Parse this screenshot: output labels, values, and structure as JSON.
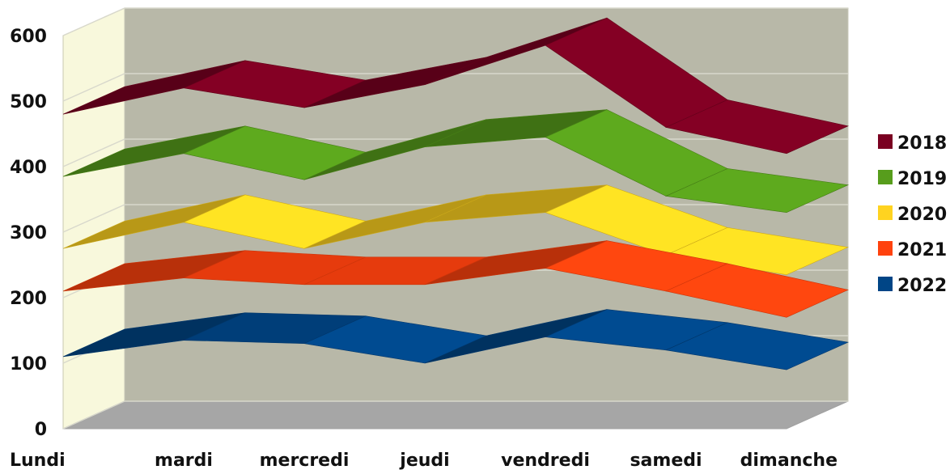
{
  "chart_data": {
    "type": "area",
    "variant": "3d-ribbon",
    "title": "",
    "xlabel": "",
    "ylabel": "",
    "ylim": [
      0,
      600
    ],
    "yticks": [
      0,
      100,
      200,
      300,
      400,
      500,
      600
    ],
    "grid": true,
    "legend_position": "right",
    "categories": [
      "Lundi",
      "mardi",
      "mercredi",
      "jeudi",
      "vendredi",
      "samedi",
      "dimanche"
    ],
    "series": [
      {
        "name": "2018",
        "color": "#7a0021",
        "values": [
          480,
          520,
          490,
          525,
          585,
          460,
          420
        ]
      },
      {
        "name": "2019",
        "color": "#579d1c",
        "values": [
          385,
          420,
          380,
          430,
          445,
          355,
          330
        ]
      },
      {
        "name": "2020",
        "color": "#ffd320",
        "values": [
          275,
          315,
          275,
          315,
          330,
          265,
          235
        ]
      },
      {
        "name": "2021",
        "color": "#ff420e",
        "values": [
          210,
          230,
          220,
          220,
          245,
          210,
          170
        ]
      },
      {
        "name": "2022",
        "color": "#004586",
        "values": [
          110,
          135,
          130,
          100,
          140,
          120,
          90
        ]
      }
    ]
  }
}
